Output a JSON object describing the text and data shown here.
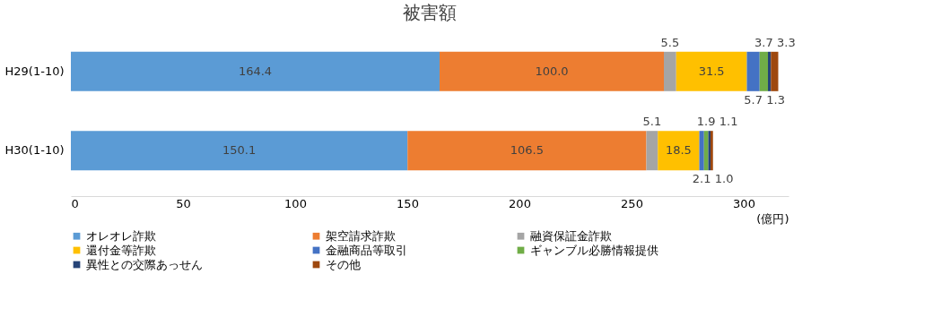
{
  "chart_data": {
    "type": "bar",
    "orientation": "horizontal",
    "stacked": true,
    "title": "被害額",
    "xlabel": "(億円)",
    "categories": [
      "H29(1-10)",
      "H30(1-10)"
    ],
    "series": [
      {
        "name": "オレオレ詐欺",
        "color": "#5b9bd5",
        "values": [
          164.4,
          150.1
        ],
        "value_labels": [
          "164.4",
          "150.1"
        ]
      },
      {
        "name": "架空請求詐欺",
        "color": "#ed7d31",
        "values": [
          100.0,
          106.5
        ],
        "value_labels": [
          "100.0",
          "106.5"
        ]
      },
      {
        "name": "融資保証金詐欺",
        "color": "#a5a5a5",
        "values": [
          5.5,
          5.1
        ],
        "value_labels": [
          "5.5",
          "5.1"
        ]
      },
      {
        "name": "還付金等詐欺",
        "color": "#ffc000",
        "values": [
          31.5,
          18.5
        ],
        "value_labels": [
          "31.5",
          "18.5"
        ]
      },
      {
        "name": "金融商品等取引",
        "color": "#4472c4",
        "values": [
          5.7,
          2.1
        ],
        "value_labels": [
          "5.7",
          "2.1"
        ]
      },
      {
        "name": "ギャンブル必勝情報提供",
        "color": "#70ad47",
        "values": [
          3.7,
          1.9
        ],
        "value_labels": [
          "3.7",
          "1.9"
        ]
      },
      {
        "name": "異性との交際あっせん",
        "color": "#264478",
        "values": [
          1.3,
          1.0
        ],
        "value_labels": [
          "1.3",
          "1.0"
        ]
      },
      {
        "name": "その他",
        "color": "#9e480e",
        "values": [
          3.3,
          1.1
        ],
        "value_labels": [
          "3.3",
          "1.1"
        ]
      }
    ],
    "xlim": [
      0,
      320
    ],
    "xticks": [
      0,
      50,
      100,
      150,
      200,
      250,
      300
    ],
    "grid": false,
    "legend": "bottom"
  }
}
